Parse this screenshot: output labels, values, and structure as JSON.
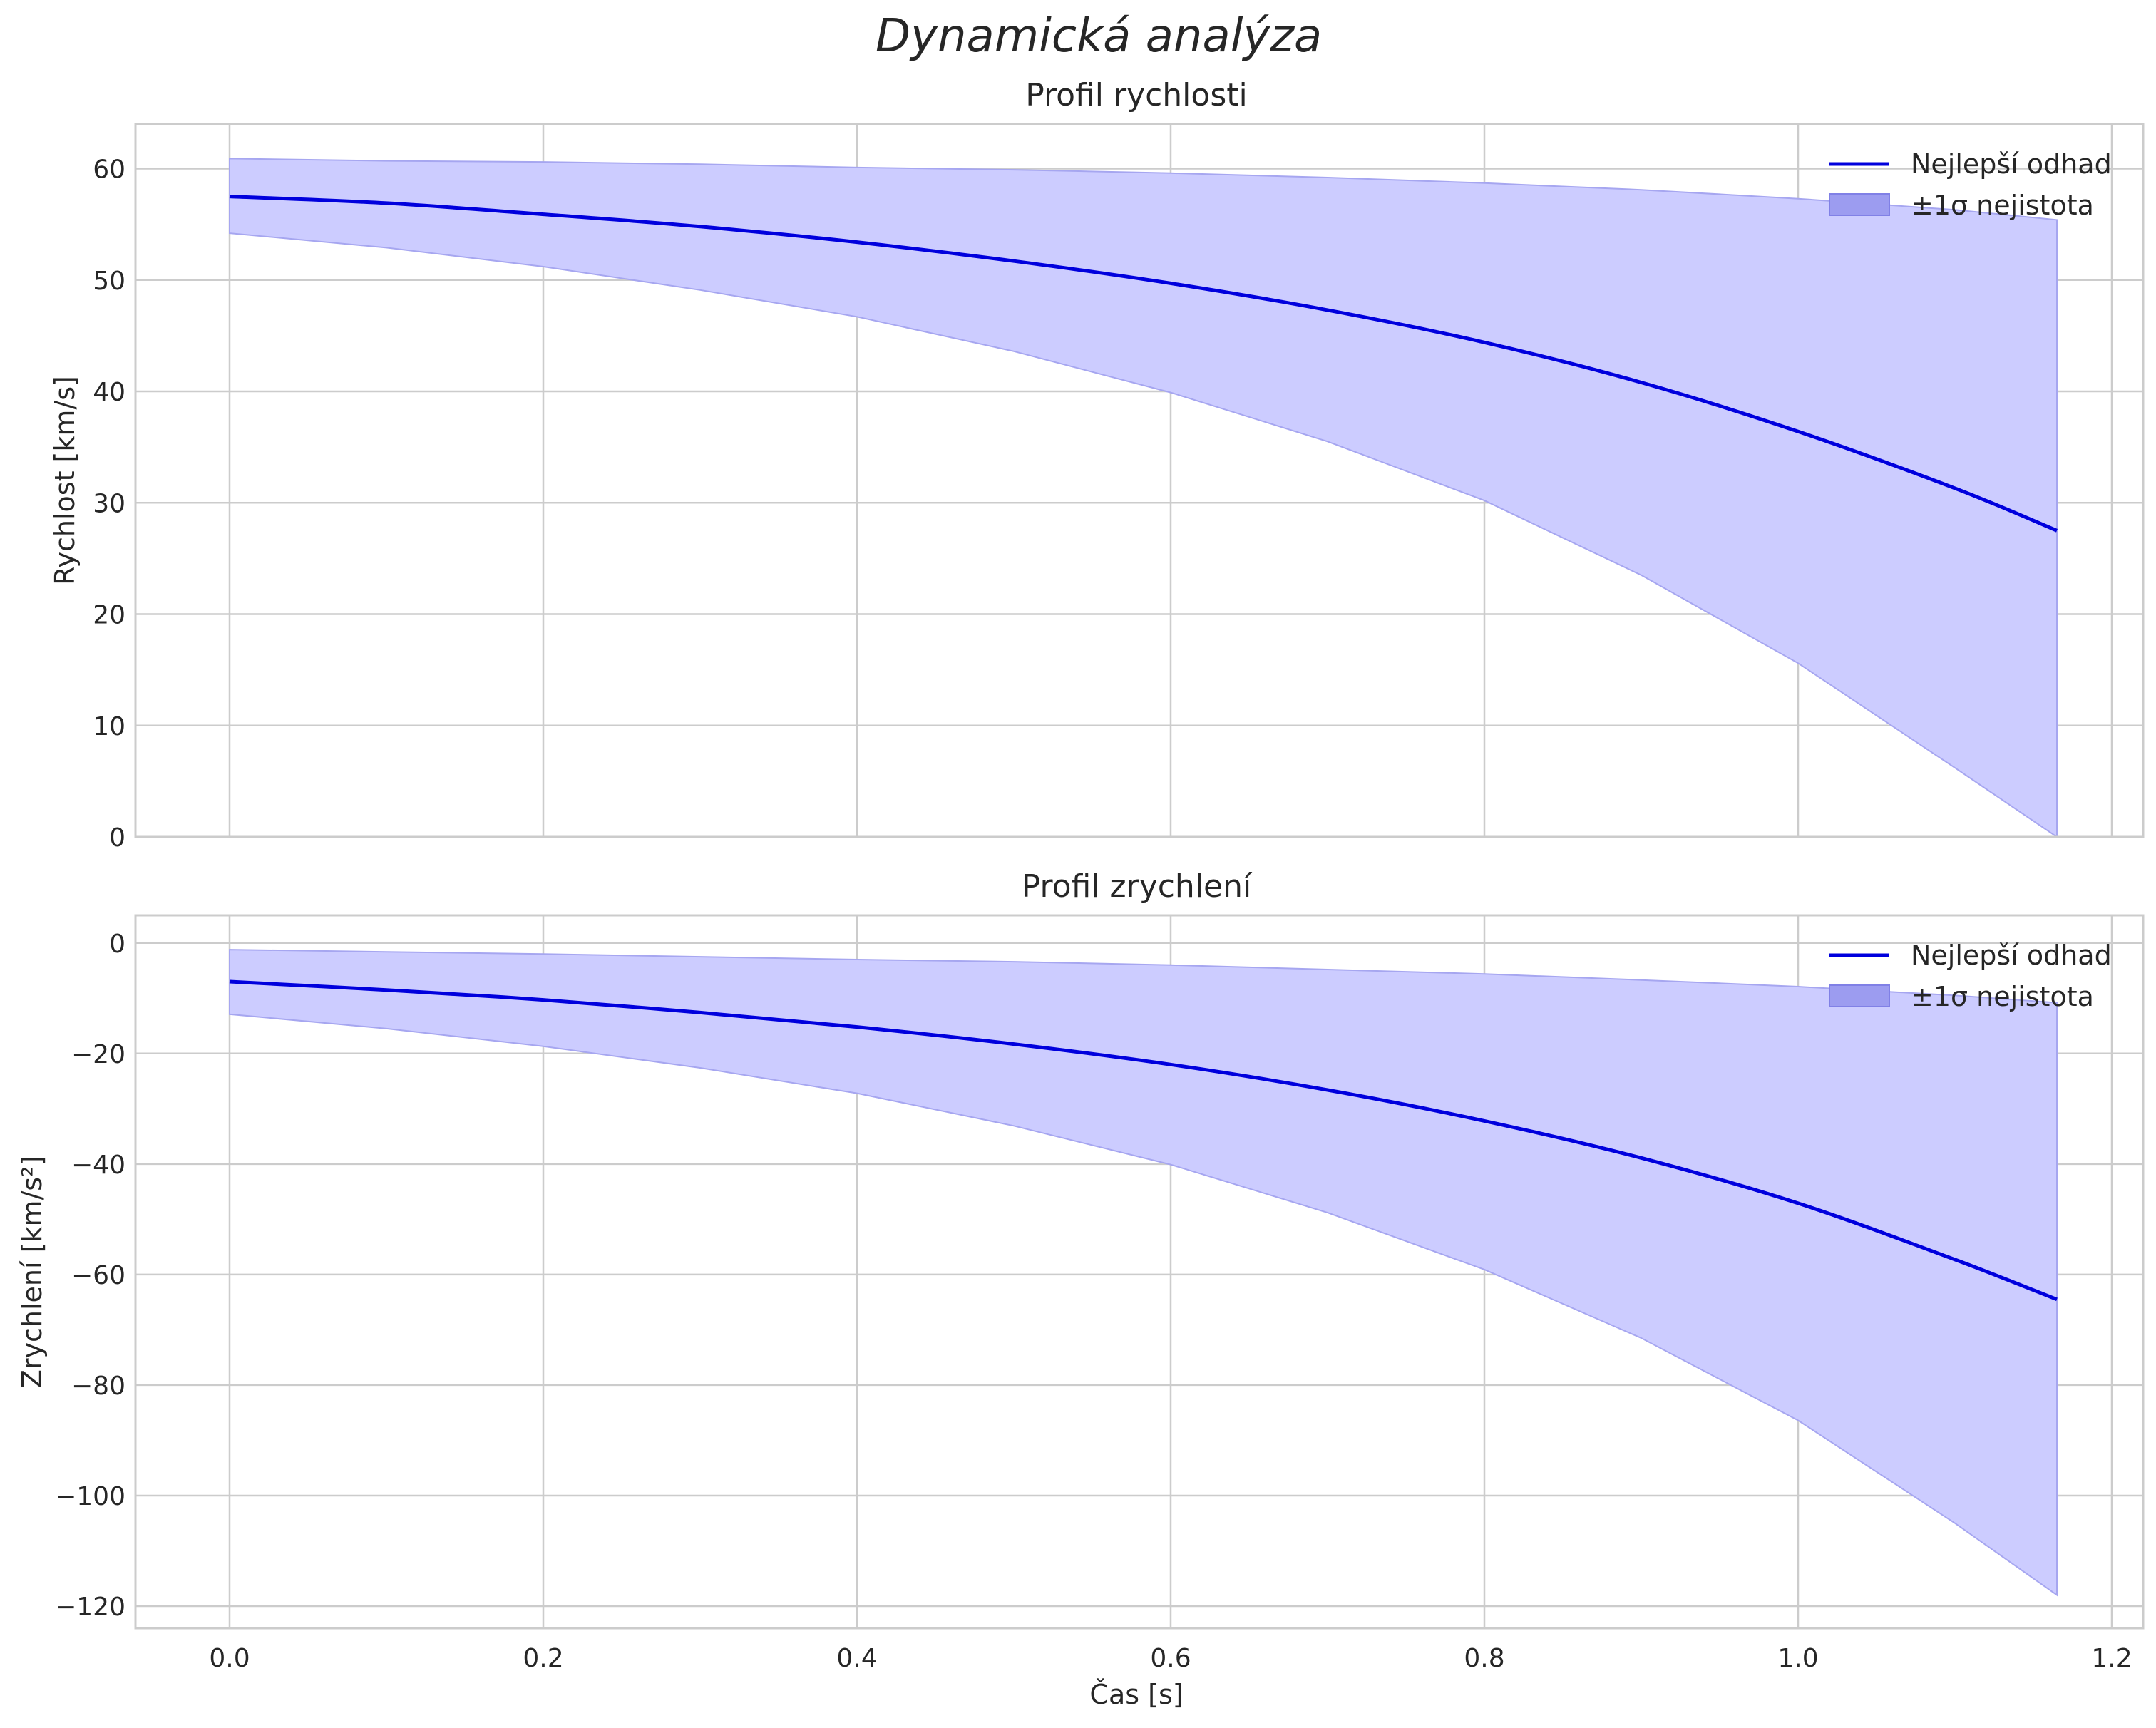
{
  "figure": {
    "suptitle": "Dynamická analýza"
  },
  "colors": {
    "line": "#0000dd",
    "band_fill": "#ccccff",
    "band_edge": "#a6a6f0",
    "grid": "#cccccc",
    "text": "#262626"
  },
  "chart_data": [
    {
      "type": "line",
      "title": "Profil rychlosti",
      "xlabel": "",
      "ylabel": "Rychlost [km/s]",
      "xlim": [
        -0.06,
        1.22
      ],
      "ylim": [
        0,
        64
      ],
      "xticks": [
        0.0,
        0.2,
        0.4,
        0.6,
        0.8,
        1.0,
        1.2
      ],
      "xtick_labels": [
        "",
        "",
        "",
        "",
        "",
        "",
        ""
      ],
      "yticks": [
        0,
        10,
        20,
        30,
        40,
        50,
        60
      ],
      "ytick_labels": [
        "0",
        "10",
        "20",
        "30",
        "40",
        "50",
        "60"
      ],
      "grid": true,
      "legend": {
        "position": "top-right",
        "line_label": "Nejlepší odhad",
        "band_label": "±1σ nejistota"
      },
      "x": [
        0.0,
        0.1,
        0.2,
        0.3,
        0.4,
        0.5,
        0.6,
        0.7,
        0.8,
        0.9,
        1.0,
        1.1,
        1.165
      ],
      "series": [
        {
          "name": "Nejlepší odhad",
          "values": [
            57.5,
            56.9,
            55.9,
            54.8,
            53.4,
            51.7,
            49.7,
            47.3,
            44.4,
            40.8,
            36.4,
            31.3,
            27.5
          ]
        },
        {
          "name": "±1σ nejistota (horní)",
          "values": [
            60.9,
            60.7,
            60.6,
            60.4,
            60.1,
            59.9,
            59.6,
            59.2,
            58.7,
            58.1,
            57.3,
            56.3,
            55.4
          ]
        },
        {
          "name": "±1σ nejistota (dolní)",
          "values": [
            54.2,
            52.9,
            51.2,
            49.1,
            46.7,
            43.6,
            39.9,
            35.5,
            30.2,
            23.5,
            15.6,
            6.2,
            0.0
          ]
        }
      ]
    },
    {
      "type": "line",
      "title": "Profil zrychlení",
      "xlabel": "Čas [s]",
      "ylabel": "Zrychlení [km/s²]",
      "xlim": [
        -0.06,
        1.22
      ],
      "ylim": [
        -124,
        5
      ],
      "xticks": [
        0.0,
        0.2,
        0.4,
        0.6,
        0.8,
        1.0,
        1.2
      ],
      "xtick_labels": [
        "0.0",
        "0.2",
        "0.4",
        "0.6",
        "0.8",
        "1.0",
        "1.2"
      ],
      "yticks": [
        0,
        -20,
        -40,
        -60,
        -80,
        -100,
        -120
      ],
      "ytick_labels": [
        "0",
        "−20",
        "−40",
        "−60",
        "−80",
        "−100",
        "−120"
      ],
      "grid": true,
      "legend": {
        "position": "top-right",
        "line_label": "Nejlepší odhad",
        "band_label": "±1σ nejistota"
      },
      "x": [
        0.0,
        0.1,
        0.2,
        0.3,
        0.4,
        0.5,
        0.6,
        0.7,
        0.8,
        0.9,
        1.0,
        1.1,
        1.165
      ],
      "series": [
        {
          "name": "Nejlepší odhad",
          "values": [
            -7.0,
            -8.5,
            -10.3,
            -12.6,
            -15.2,
            -18.3,
            -22.0,
            -26.6,
            -32.2,
            -38.9,
            -47.1,
            -57.3,
            -64.5
          ]
        },
        {
          "name": "±1σ nejistota (horní)",
          "values": [
            -1.2,
            -1.6,
            -2.0,
            -2.5,
            -3.0,
            -3.4,
            -4.0,
            -4.8,
            -5.6,
            -6.7,
            -7.9,
            -9.5,
            -10.8
          ]
        },
        {
          "name": "±1σ nejistota (dolní)",
          "values": [
            -12.9,
            -15.5,
            -18.7,
            -22.6,
            -27.2,
            -33.1,
            -40.1,
            -48.8,
            -59.1,
            -71.5,
            -86.4,
            -105.0,
            -118.0
          ]
        }
      ]
    }
  ]
}
